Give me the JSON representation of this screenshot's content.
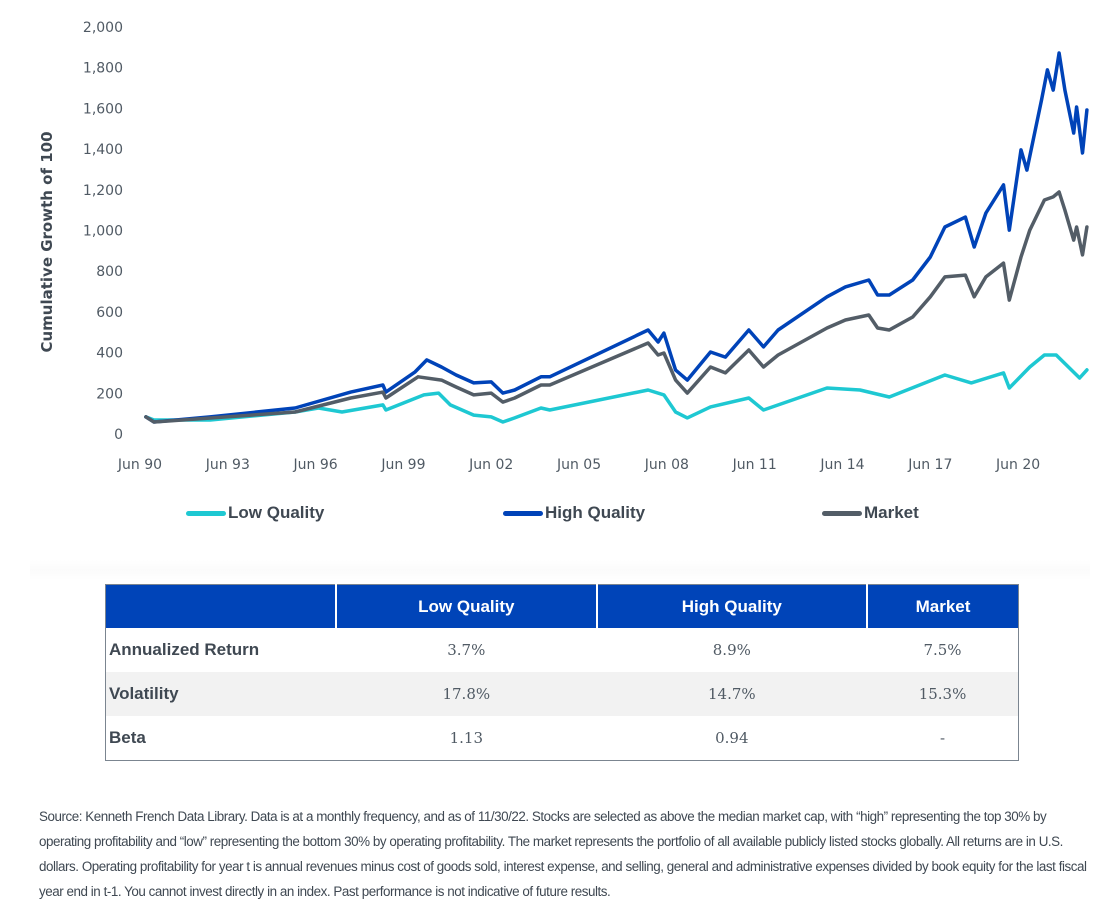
{
  "chart_data": {
    "type": "line",
    "title": "",
    "ylabel": "Cumulative Growth of 100",
    "xlabel": "",
    "ylim": [
      0,
      2000
    ],
    "xlim": [
      1990.5,
      2022.9
    ],
    "yticks": [
      0,
      200,
      400,
      600,
      800,
      1000,
      1200,
      1400,
      1600,
      1800,
      2000
    ],
    "ytick_labels": [
      "0",
      "200",
      "400",
      "600",
      "800",
      "1,000",
      "1,200",
      "1,400",
      "1,600",
      "1,800",
      "2,000"
    ],
    "xticks": [
      1990.5,
      1993.5,
      1996.5,
      1999.5,
      2002.5,
      2005.5,
      2008.5,
      2011.5,
      2014.5,
      2017.5,
      2020.5
    ],
    "xtick_labels": [
      "Jun 90",
      "Jun 93",
      "Jun 96",
      "Jun 99",
      "Jun 02",
      "Jun 05",
      "Jun 08",
      "Jun 11",
      "Jun 14",
      "Jun 17",
      "Jun 20"
    ],
    "grid": false,
    "legend_position": "bottom",
    "series": [
      {
        "name": "Low Quality",
        "color": "#1ec8d2",
        "x": [
          1990.7,
          1990.98,
          1992.9,
          1995.8,
          1996.6,
          1997.4,
          1998.8,
          1998.9,
          2000.2,
          2000.7,
          2001.1,
          2001.9,
          2002.5,
          2002.9,
          2003.3,
          2004.2,
          2004.5,
          2007.86,
          2008.4,
          2008.8,
          2009.2,
          2009.99,
          2011.3,
          2011.8,
          2013.97,
          2015.1,
          2016.1,
          2018.0,
          2018.9,
          2020.0,
          2020.2,
          2020.9,
          2021.4,
          2021.8,
          2022.6,
          2022.85
        ],
        "y": [
          84,
          69,
          69,
          108,
          128,
          108,
          143,
          118,
          192,
          201,
          143,
          93,
          84,
          59,
          79,
          128,
          118,
          216,
          192,
          108,
          79,
          133,
          177,
          118,
          226,
          216,
          182,
          290,
          251,
          300,
          226,
          329,
          388,
          388,
          275,
          315
        ]
      },
      {
        "name": "High Quality",
        "color": "#0043b8",
        "x": [
          1990.7,
          1990.98,
          1992.9,
          1995.8,
          1997.7,
          1998.8,
          1998.9,
          1999.9,
          2000.3,
          2000.8,
          2001.3,
          2001.9,
          2002.5,
          2002.9,
          2003.3,
          2004.2,
          2004.5,
          2007.86,
          2008.2,
          2008.4,
          2008.8,
          2009.2,
          2009.99,
          2010.5,
          2011.3,
          2011.8,
          2012.3,
          2013.97,
          2014.6,
          2015.4,
          2015.7,
          2016.1,
          2016.9,
          2017.5,
          2018.0,
          2018.7,
          2019.0,
          2019.4,
          2020.0,
          2020.2,
          2020.6,
          2020.8,
          2021.3,
          2021.5,
          2021.7,
          2021.9,
          2022.1,
          2022.4,
          2022.5,
          2022.7,
          2022.85
        ],
        "y": [
          84,
          59,
          84,
          128,
          206,
          241,
          206,
          305,
          364,
          329,
          290,
          251,
          256,
          201,
          216,
          281,
          281,
          511,
          452,
          496,
          314,
          265,
          403,
          378,
          511,
          428,
          511,
          674,
          723,
          757,
          683,
          683,
          757,
          870,
          1017,
          1066,
          919,
          1086,
          1224,
          1002,
          1396,
          1297,
          1641,
          1789,
          1690,
          1872,
          1690,
          1479,
          1607,
          1381,
          1592
        ]
      },
      {
        "name": "Market",
        "color": "#535d67",
        "x": [
          1990.7,
          1990.98,
          1995.8,
          1997.7,
          1998.8,
          1998.9,
          2000.0,
          2000.8,
          2001.3,
          2001.9,
          2002.5,
          2002.9,
          2003.3,
          2004.2,
          2004.5,
          2007.86,
          2008.2,
          2008.4,
          2008.8,
          2009.2,
          2009.99,
          2010.5,
          2011.3,
          2011.8,
          2012.3,
          2013.97,
          2014.6,
          2015.4,
          2015.7,
          2016.1,
          2016.9,
          2017.5,
          2018.0,
          2018.7,
          2019.0,
          2019.4,
          2020.0,
          2020.2,
          2020.6,
          2020.9,
          2021.4,
          2021.7,
          2021.9,
          2022.1,
          2022.4,
          2022.5,
          2022.7,
          2022.85
        ],
        "y": [
          84,
          59,
          108,
          177,
          206,
          177,
          281,
          265,
          231,
          192,
          201,
          157,
          177,
          241,
          241,
          447,
          388,
          398,
          265,
          201,
          329,
          300,
          413,
          329,
          388,
          521,
          560,
          585,
          521,
          511,
          575,
          674,
          772,
          781,
          674,
          772,
          840,
          658,
          870,
          1002,
          1150,
          1165,
          1189,
          1100,
          953,
          1017,
          880,
          1017
        ]
      }
    ]
  },
  "table": {
    "headers": [
      "",
      "Low Quality",
      "High Quality",
      "Market"
    ],
    "rows": [
      {
        "label": "Annualized Return",
        "values": [
          "3.7%",
          "8.9%",
          "7.5%"
        ]
      },
      {
        "label": "Volatility",
        "values": [
          "17.8%",
          "14.7%",
          "15.3%"
        ]
      },
      {
        "label": "Beta",
        "values": [
          "1.13",
          "0.94",
          "-"
        ]
      }
    ]
  },
  "footnote": "Source: Kenneth French Data Library. Data is at a monthly frequency, and as of 11/30/22. Stocks are selected as above the median market cap, with “high” representing the top 30% by operating profitability and “low” representing the bottom 30% by operating profitability. The market represents the portfolio of all available publicly listed stocks globally. All returns are in U.S. dollars. Operating profitability for year t is annual revenues minus cost of goods sold, interest expense, and selling, general and administrative expenses divided by book equity for the last fiscal year end in t-1. You cannot invest directly in an index. Past performance is not indicative of future results."
}
